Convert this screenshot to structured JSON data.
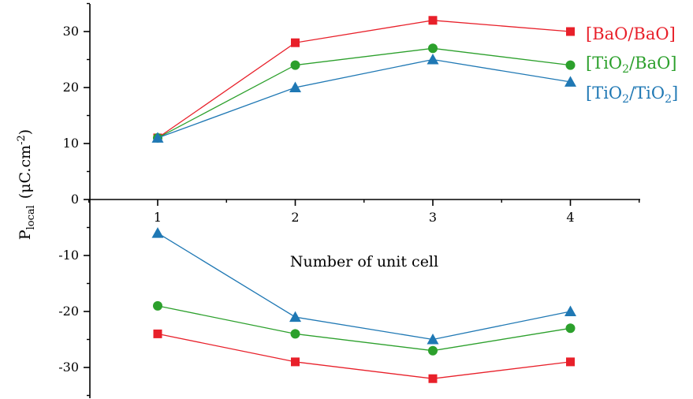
{
  "chart_data": {
    "type": "line",
    "title": "",
    "xlabel": "Number of unit cell",
    "ylabel": {
      "main": "P",
      "sub": "local",
      "unit_open": "(μC.cm",
      "unit_sup": "-2",
      "unit_close": ")"
    },
    "x": [
      1,
      2,
      3,
      4
    ],
    "x_ticks": [
      "1",
      "2",
      "3",
      "4"
    ],
    "xlim": [
      0.5,
      4.5
    ],
    "ylim": [
      -35,
      35
    ],
    "y_ticks": [
      -30,
      -20,
      -10,
      0,
      10,
      20,
      30
    ],
    "y_tick_labels": [
      "-30",
      "-20",
      "-10",
      "0",
      "10",
      "20",
      "30"
    ],
    "grid": false,
    "legend_placement": "top-right",
    "series": [
      {
        "name": "[BaO/BaO]",
        "legend": {
          "parts": [
            [
              "t",
              "[BaO/BaO]"
            ]
          ]
        },
        "color": "#e8202a",
        "marker": "square",
        "values": [
          11,
          28,
          32,
          30
        ]
      },
      {
        "name": "[TiO2/BaO]",
        "legend": {
          "parts": [
            [
              "t",
              "[TiO"
            ],
            [
              "s",
              "2"
            ],
            [
              "t",
              "/BaO]"
            ]
          ]
        },
        "color": "#2ca02c",
        "marker": "circle",
        "values": [
          11,
          24,
          27,
          24
        ]
      },
      {
        "name": "[TiO2/TiO2]",
        "legend": {
          "parts": [
            [
              "t",
              "[TiO"
            ],
            [
              "s",
              "2"
            ],
            [
              "t",
              "/TiO"
            ],
            [
              "s",
              "2"
            ],
            [
              "t",
              "]"
            ]
          ]
        },
        "color": "#1f78b4",
        "marker": "triangle",
        "values": [
          11,
          20,
          25,
          21
        ]
      },
      {
        "name": "[BaO/BaO]",
        "color": "#e8202a",
        "marker": "square",
        "values": [
          -24,
          -29,
          -32,
          -29
        ]
      },
      {
        "name": "[TiO2/BaO]",
        "color": "#2ca02c",
        "marker": "circle",
        "values": [
          -19,
          -24,
          -27,
          -23
        ]
      },
      {
        "name": "[TiO2/TiO2]",
        "color": "#1f78b4",
        "marker": "triangle",
        "values": [
          -6,
          -21,
          -25,
          -20
        ]
      }
    ]
  }
}
